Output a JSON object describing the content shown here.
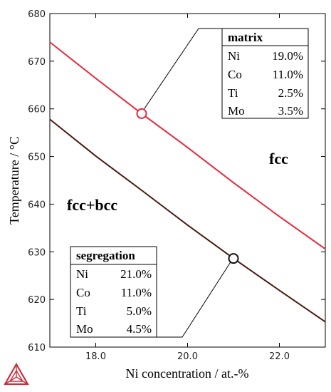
{
  "chart_data": {
    "type": "line",
    "xlabel": "Ni concentration / at.-%",
    "ylabel": "Temperature / °C",
    "xlim": [
      17.0,
      23.0
    ],
    "ylim": [
      610,
      680
    ],
    "xticks": [
      18.0,
      20.0,
      22.0
    ],
    "xtick_labels": [
      "18.0",
      "20.0",
      "22.0"
    ],
    "yticks": [
      610,
      620,
      630,
      640,
      650,
      660,
      670,
      680
    ],
    "grid": false,
    "series": [
      {
        "color": "#e8283a",
        "x": [
          17.0,
          18.0,
          19.0,
          20.0,
          21.0,
          22.0,
          23.0
        ],
        "y": [
          674.0,
          666.4,
          659.0,
          651.9,
          644.5,
          637.4,
          630.6
        ]
      },
      {
        "color": "#4a1a10",
        "x": [
          17.0,
          18.0,
          19.0,
          20.0,
          21.0,
          22.0,
          23.0
        ],
        "y": [
          657.8,
          650.1,
          642.9,
          635.6,
          628.6,
          621.9,
          615.3
        ]
      }
    ],
    "markers": [
      {
        "name": "matrix",
        "x": 19.0,
        "y": 659.0,
        "color": "#e8283a"
      },
      {
        "name": "segregation",
        "x": 21.0,
        "y": 628.6,
        "color": "#111111"
      }
    ],
    "annotations": [
      {
        "title": "matrix",
        "rows": [
          {
            "el": "Ni",
            "val": "19.0%"
          },
          {
            "el": "Co",
            "val": "11.0%"
          },
          {
            "el": "Ti",
            "val": "2.5%"
          },
          {
            "el": "Mo",
            "val": "3.5%"
          }
        ]
      },
      {
        "title": "segregation",
        "rows": [
          {
            "el": "Ni",
            "val": "21.0%"
          },
          {
            "el": "Co",
            "val": "11.0%"
          },
          {
            "el": "Ti",
            "val": "5.0%"
          },
          {
            "el": "Mo",
            "val": "4.5%"
          }
        ]
      }
    ],
    "region_labels": [
      "fcc",
      "fcc+bcc"
    ]
  },
  "icons": {
    "logo": "thermo-calc-triangle-logo"
  }
}
